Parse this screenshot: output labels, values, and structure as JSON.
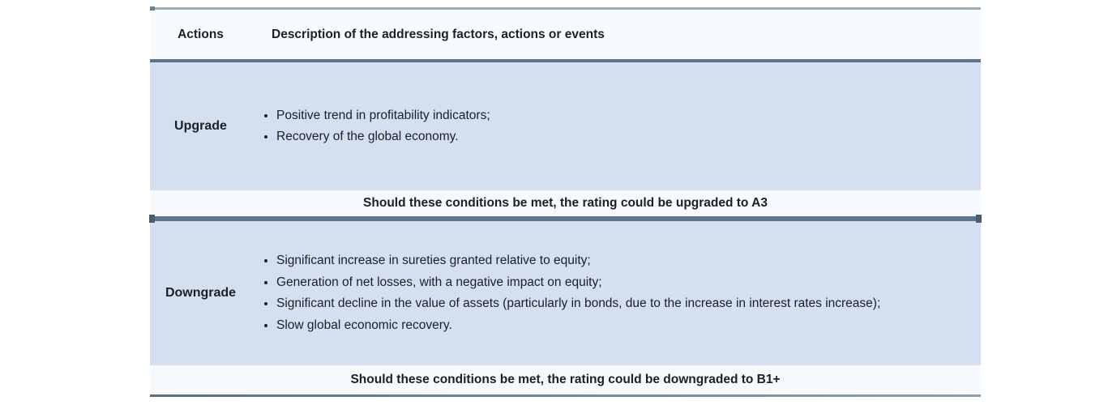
{
  "table": {
    "header": {
      "actions_label": "Actions",
      "description_label": "Description of the addressing factors, actions or events"
    },
    "sections": [
      {
        "action": "Upgrade",
        "items": [
          "Positive trend in profitability indicators;",
          "Recovery of the global economy."
        ],
        "note": "Should these conditions be met, the rating could be upgraded to A3"
      },
      {
        "action": "Downgrade",
        "items": [
          "Significant increase in sureties granted relative to equity;",
          "Generation of net losses, with a negative impact on equity;",
          "Significant decline in the value of assets (particularly in bonds, due to the increase in interest rates increase);",
          "Slow global economic recovery."
        ],
        "note": "Should these conditions be met, the rating could be downgraded to B1+"
      }
    ],
    "colors": {
      "row_blue": "#d4dfef",
      "row_light": "#f7fafc",
      "border_dark": "#5d7490",
      "border_light": "#9badba",
      "text": "#1b1f27"
    }
  }
}
